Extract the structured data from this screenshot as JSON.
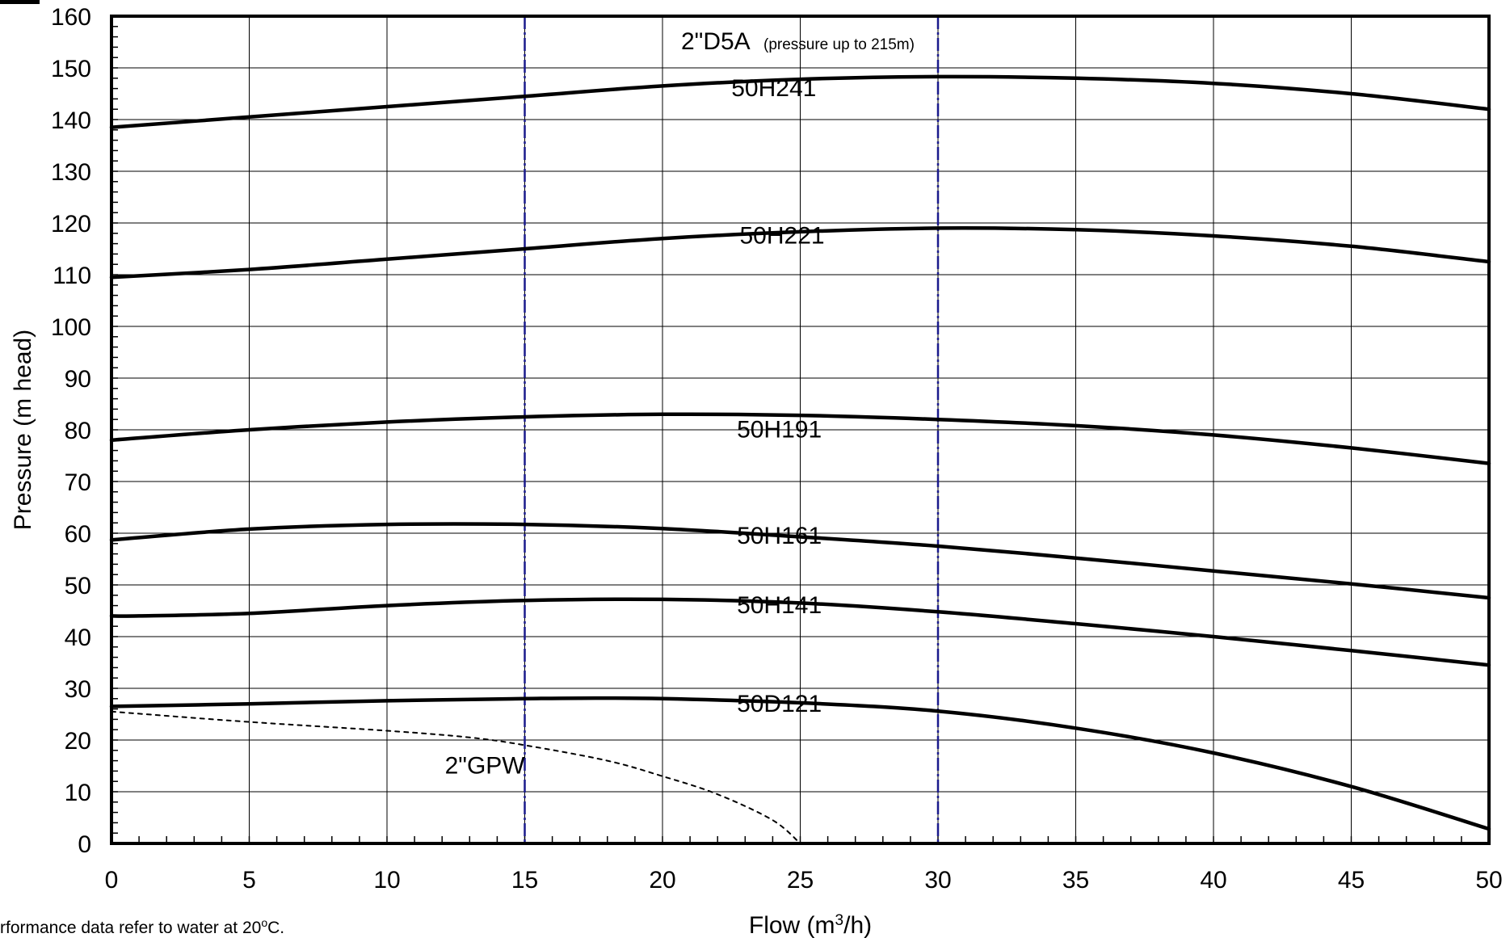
{
  "chart_data": {
    "type": "line",
    "title": "2\"D5A",
    "subtitle": "(pressure up to 215m)",
    "xlabel": "Flow (m³/h)",
    "ylabel": "Pressure (m head)",
    "footnote": "rformance data refer to water at 20°C.",
    "xlim": [
      0,
      50
    ],
    "ylim": [
      0,
      160
    ],
    "x_ticks": [
      "0",
      "5",
      "10",
      "15",
      "20",
      "25",
      "30",
      "35",
      "40",
      "45",
      "50"
    ],
    "y_ticks": [
      "0",
      "10",
      "20",
      "30",
      "40",
      "50",
      "60",
      "70",
      "80",
      "90",
      "100",
      "110",
      "120",
      "130",
      "140",
      "150",
      "160"
    ],
    "grid": true,
    "vertical_reference_lines": [
      15,
      30
    ],
    "colors": {
      "curve": "#000000",
      "grid": "#000000",
      "reference_line": "#1a1a8c"
    },
    "series": [
      {
        "name": "50H241",
        "style": "solid",
        "label_at": [
          22.5,
          144.5
        ],
        "x": [
          0,
          5,
          10,
          15,
          20,
          25,
          30,
          35,
          40,
          45,
          50
        ],
        "y": [
          138.5,
          140.5,
          142.5,
          144.5,
          146.5,
          147.8,
          148.3,
          148,
          147,
          145,
          142
        ]
      },
      {
        "name": "50H221",
        "style": "solid",
        "label_at": [
          22.8,
          116
        ],
        "x": [
          0,
          5,
          10,
          15,
          20,
          25,
          30,
          35,
          40,
          45,
          50
        ],
        "y": [
          109.5,
          111,
          113,
          115,
          117,
          118.3,
          119,
          118.7,
          117.5,
          115.5,
          112.5
        ]
      },
      {
        "name": "50H191",
        "style": "solid",
        "label_at": [
          22.7,
          78.5
        ],
        "x": [
          0,
          5,
          10,
          15,
          20,
          25,
          30,
          35,
          40,
          45,
          50
        ],
        "y": [
          78,
          80,
          81.5,
          82.5,
          83,
          82.8,
          82,
          80.8,
          79,
          76.5,
          73.5
        ]
      },
      {
        "name": "50H161",
        "style": "solid",
        "label_at": [
          22.7,
          58
        ],
        "x": [
          0,
          5,
          10,
          15,
          20,
          25,
          30,
          35,
          40,
          45,
          50
        ],
        "y": [
          58.7,
          60.8,
          61.7,
          61.7,
          60.9,
          59.3,
          57.5,
          55.2,
          52.7,
          50.2,
          47.5
        ]
      },
      {
        "name": "50H141",
        "style": "solid",
        "label_at": [
          22.7,
          44.5
        ],
        "x": [
          0,
          1,
          5,
          10,
          15,
          20,
          25,
          30,
          35,
          40,
          45,
          50
        ],
        "y": [
          44,
          44,
          44.5,
          46,
          47,
          47.2,
          46.5,
          44.8,
          42.5,
          40,
          37.3,
          34.5
        ]
      },
      {
        "name": "50D121",
        "style": "solid",
        "label_at": [
          22.7,
          25.5
        ],
        "x": [
          0,
          5,
          10,
          15,
          17,
          20,
          25,
          30,
          35,
          40,
          45,
          50
        ],
        "y": [
          26.5,
          27,
          27.6,
          28,
          28.1,
          28,
          27.2,
          25.6,
          22.3,
          17.5,
          11,
          2.8
        ]
      },
      {
        "name": "2\"GPW",
        "style": "dashed",
        "label_at": [
          12.1,
          13.5
        ],
        "x": [
          0,
          5,
          10,
          13,
          15,
          18,
          20,
          22,
          24,
          25
        ],
        "y": [
          25.5,
          23.5,
          21.8,
          20.5,
          19,
          16,
          13,
          9.5,
          4.5,
          0
        ]
      }
    ]
  }
}
